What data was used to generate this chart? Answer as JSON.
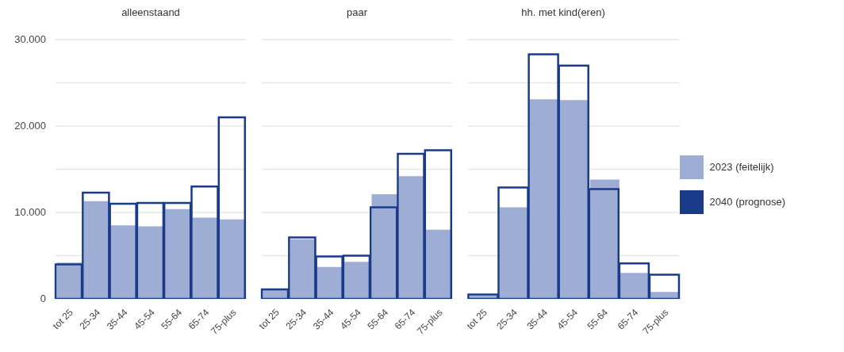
{
  "chart_data": [
    {
      "type": "bar",
      "title": "alleenstaand",
      "categories": [
        "tot 25",
        "25-34",
        "35-44",
        "45-54",
        "55-64",
        "65-74",
        "75-plus"
      ],
      "series": [
        {
          "color": "#9dadd3",
          "values": [
            4200,
            11300,
            8500,
            8400,
            10400,
            9400,
            9200
          ]
        },
        {
          "color": "#1a3a8a",
          "values": [
            4000,
            12300,
            11000,
            11100,
            11100,
            13000,
            21000
          ]
        }
      ],
      "ylim": [
        0,
        30000
      ],
      "yticks": [
        0,
        {
          "value": 5000,
          "label": null
        },
        {
          "value": 10000,
          "label": "10.000"
        },
        {
          "value": 15000,
          "label": null
        },
        {
          "value": 20000,
          "label": "20.000"
        },
        {
          "value": 25000,
          "label": null
        },
        {
          "value": 30000,
          "label": "30.000"
        }
      ],
      "grid": "y"
    },
    {
      "type": "bar",
      "title": "paar",
      "categories": [
        "tot 25",
        "25-34",
        "35-44",
        "45-54",
        "55-64",
        "65-74",
        "75-plus"
      ],
      "series": [
        {
          "color": "#9dadd3",
          "values": [
            1000,
            6900,
            3700,
            4300,
            12100,
            14200,
            8000
          ]
        },
        {
          "color": "#1a3a8a",
          "values": [
            1100,
            7100,
            4900,
            5000,
            10600,
            16800,
            17200
          ]
        }
      ],
      "ylim": [
        0,
        30000
      ],
      "yticks": [
        {
          "value": 0,
          "label": null
        },
        {
          "value": 5000,
          "label": null
        },
        {
          "value": 10000,
          "label": null
        },
        {
          "value": 15000,
          "label": null
        },
        {
          "value": 20000,
          "label": null
        },
        {
          "value": 25000,
          "label": null
        },
        {
          "value": 30000,
          "label": null
        }
      ],
      "grid": "y",
      "tick_labels": "x"
    },
    {
      "type": "bar",
      "title": "hh. met kind(eren)",
      "categories": [
        "tot 25",
        "25-34",
        "35-44",
        "45-54",
        "55-64",
        "65-74",
        "75-plus"
      ],
      "series": [
        {
          "name": "2023 (feitelijk)",
          "color": "#9dadd3",
          "values": [
            400,
            10600,
            23100,
            23000,
            13800,
            3000,
            800
          ]
        },
        {
          "name": "2040 (prognose)",
          "color": "#1a3a8a",
          "values": [
            500,
            12900,
            28300,
            27000,
            12700,
            4100,
            2800
          ]
        }
      ],
      "ylim": [
        0,
        30000
      ],
      "yticks": [
        {
          "value": 0,
          "label": null
        },
        {
          "value": 5000,
          "label": null
        },
        {
          "value": 10000,
          "label": null
        },
        {
          "value": 15000,
          "label": null
        },
        {
          "value": 20000,
          "label": null
        },
        {
          "value": 25000,
          "label": null
        },
        {
          "value": 30000,
          "label": null
        }
      ],
      "grid": "y",
      "tick_labels": "x",
      "legend": "right"
    }
  ]
}
